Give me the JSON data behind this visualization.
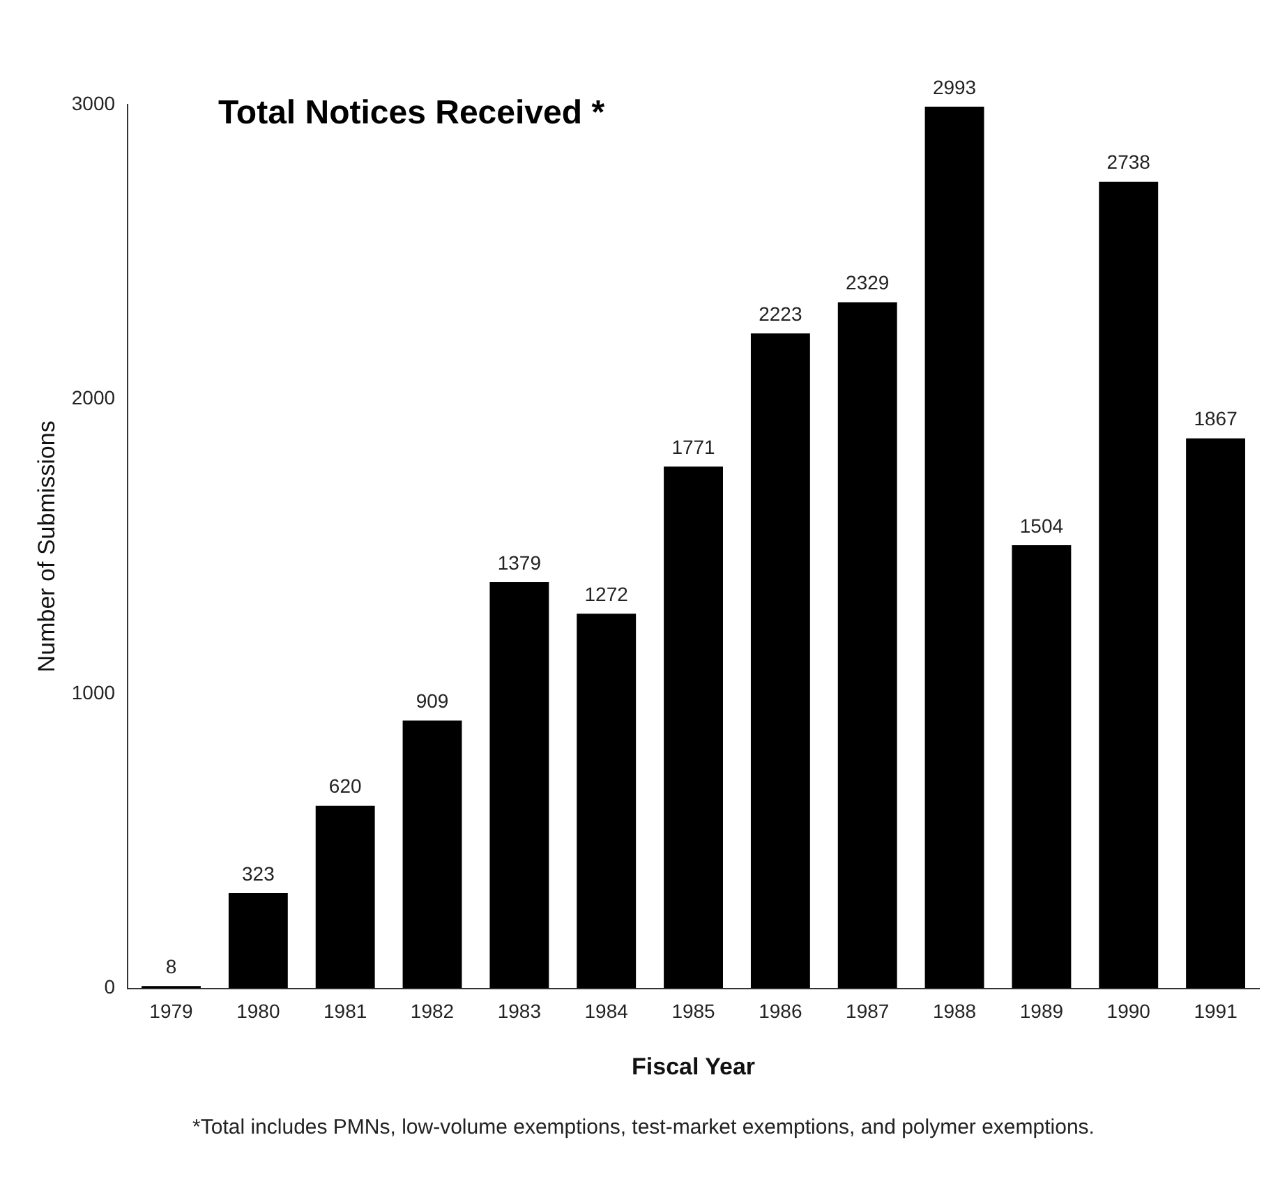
{
  "chart_data": {
    "type": "bar",
    "title": "Total Notices Received *",
    "xlabel": "Fiscal Year",
    "ylabel": "Number of Submissions",
    "categories": [
      "1979",
      "1980",
      "1981",
      "1982",
      "1983",
      "1984",
      "1985",
      "1986",
      "1987",
      "1988",
      "1989",
      "1990",
      "1991"
    ],
    "values": [
      8,
      323,
      620,
      909,
      1379,
      1272,
      1771,
      2223,
      2329,
      2993,
      1504,
      2738,
      1867
    ],
    "color": "#000000",
    "ylim": [
      0,
      3000
    ],
    "yticks": [
      0,
      1000,
      2000,
      3000
    ],
    "grid": false,
    "legend": false,
    "data_labels": true,
    "annotations": [
      "*Total includes PMNs, low-volume exemptions, test-market exemptions, and polymer exemptions."
    ]
  }
}
